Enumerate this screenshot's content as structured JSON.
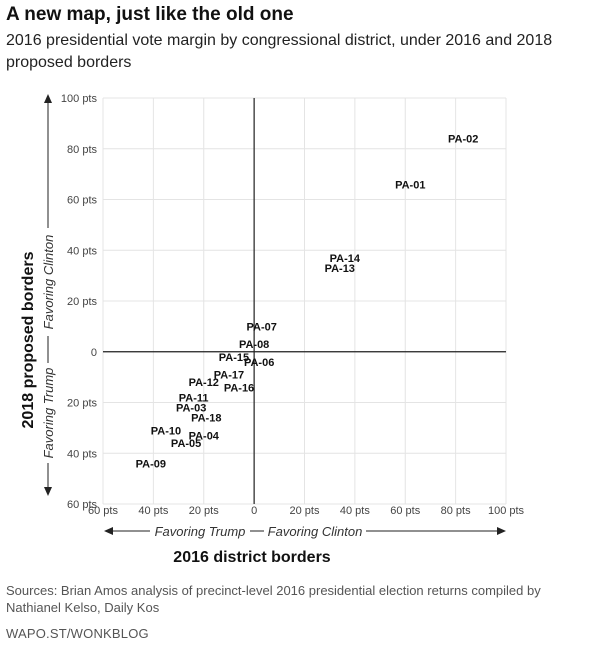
{
  "header": {
    "title": "A new map, just like the old one",
    "subtitle": "2016 presidential vote margin by congressional district, under 2016 and 2018 proposed borders"
  },
  "chart_data": {
    "type": "scatter",
    "xlabel": "2016 district borders",
    "ylabel": "2018 proposed borders",
    "x_direction_left": "Favoring Trump",
    "x_direction_right": "Favoring Clinton",
    "y_direction_down": "Favoring Trump",
    "y_direction_up": "Favoring Clinton",
    "xlim": [
      -60,
      100
    ],
    "ylim": [
      -60,
      100
    ],
    "x_ticks": [
      {
        "value": -60,
        "label": "60 pts"
      },
      {
        "value": -40,
        "label": "40 pts"
      },
      {
        "value": -20,
        "label": "20 pts"
      },
      {
        "value": 0,
        "label": "0"
      },
      {
        "value": 20,
        "label": "20 pts"
      },
      {
        "value": 40,
        "label": "40 pts"
      },
      {
        "value": 60,
        "label": "60 pts"
      },
      {
        "value": 80,
        "label": "80 pts"
      },
      {
        "value": 100,
        "label": "100 pts"
      }
    ],
    "y_ticks": [
      {
        "value": 100,
        "label": "100 pts"
      },
      {
        "value": 80,
        "label": "80 pts"
      },
      {
        "value": 60,
        "label": "60 pts"
      },
      {
        "value": 40,
        "label": "40 pts"
      },
      {
        "value": 20,
        "label": "20 pts"
      },
      {
        "value": 0,
        "label": "0"
      },
      {
        "value": -20,
        "label": "20 pts"
      },
      {
        "value": -40,
        "label": "40 pts"
      },
      {
        "value": -60,
        "label": "60 pts"
      }
    ],
    "points": [
      {
        "label": "PA-02",
        "x": 83,
        "y": 84
      },
      {
        "label": "PA-01",
        "x": 62,
        "y": 66
      },
      {
        "label": "PA-14",
        "x": 36,
        "y": 37
      },
      {
        "label": "PA-13",
        "x": 34,
        "y": 33
      },
      {
        "label": "PA-07",
        "x": 3,
        "y": 10
      },
      {
        "label": "PA-08",
        "x": 0,
        "y": 3
      },
      {
        "label": "PA-15",
        "x": -8,
        "y": -2
      },
      {
        "label": "PA-06",
        "x": 2,
        "y": -4
      },
      {
        "label": "PA-17",
        "x": -10,
        "y": -9
      },
      {
        "label": "PA-12",
        "x": -20,
        "y": -12
      },
      {
        "label": "PA-16",
        "x": -6,
        "y": -14
      },
      {
        "label": "PA-11",
        "x": -24,
        "y": -18
      },
      {
        "label": "PA-03",
        "x": -25,
        "y": -22
      },
      {
        "label": "PA-18",
        "x": -19,
        "y": -26
      },
      {
        "label": "PA-10",
        "x": -35,
        "y": -31
      },
      {
        "label": "PA-04",
        "x": -20,
        "y": -33
      },
      {
        "label": "PA-05",
        "x": -27,
        "y": -36
      },
      {
        "label": "PA-09",
        "x": -41,
        "y": -44
      }
    ],
    "grid": true,
    "legend": false
  },
  "footer": {
    "source": "Sources: Brian Amos analysis of precinct-level 2016 presidential election returns compiled by Nathianel Kelso, Daily Kos",
    "credit": "WAPO.ST/WONKBLOG"
  },
  "colors": {
    "text": "#111111",
    "grid": "#e4e4e4",
    "axis": "#222222",
    "muted": "#555555"
  }
}
